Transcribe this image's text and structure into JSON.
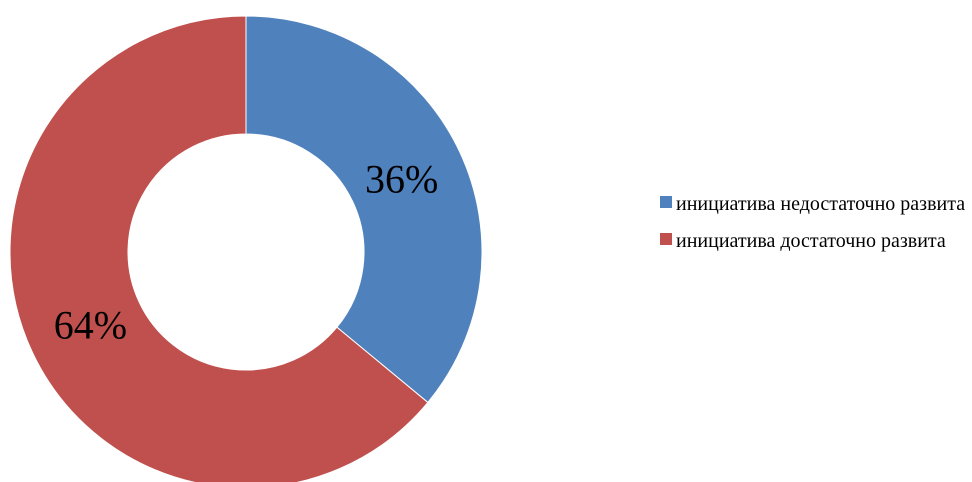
{
  "chart_data": {
    "type": "pie",
    "donut": true,
    "series": [
      {
        "name": "инициатива недостаточно развита",
        "value": 36,
        "label": "36%",
        "color": "#4F81BD"
      },
      {
        "name": "инициатива достаточно развита",
        "value": 64,
        "label": "64%",
        "color": "#C0504D"
      }
    ],
    "legend_placement": "right"
  }
}
